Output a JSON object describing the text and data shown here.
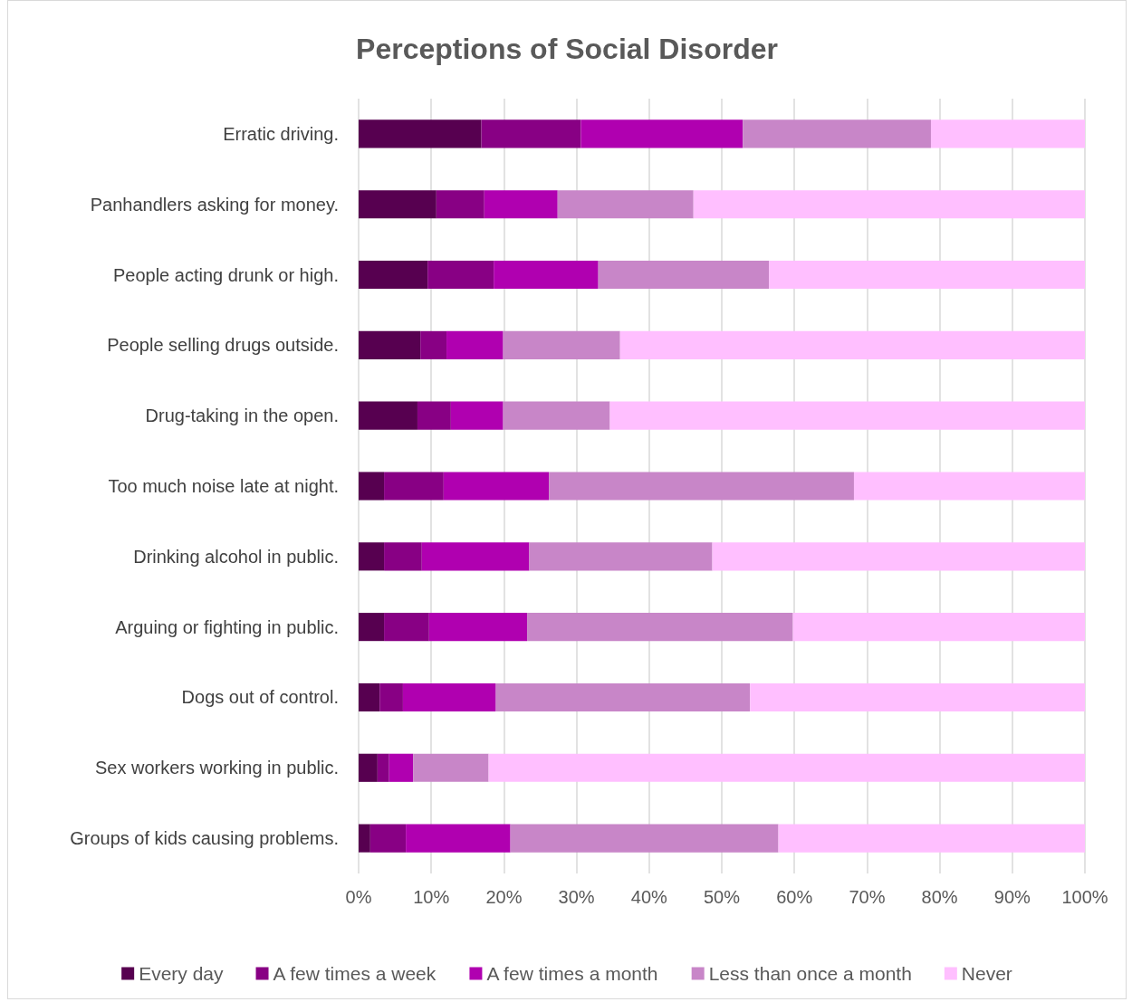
{
  "chart_data": {
    "type": "bar",
    "orientation": "horizontal",
    "stacked": true,
    "title": "Perceptions of Social Disorder",
    "categories": [
      "Erratic driving.",
      "Panhandlers asking for money.",
      "People acting drunk or high.",
      "People selling drugs outside.",
      "Drug-taking in the open.",
      "Too much noise late at night.",
      "Drinking alcohol in public.",
      "Arguing or fighting in public.",
      "Dogs out of control.",
      "Sex workers working in public.",
      "Groups of kids causing problems."
    ],
    "series": [
      {
        "name": "Every day",
        "color": "#570050",
        "values": [
          16.9,
          10.7,
          9.5,
          8.5,
          8.1,
          3.5,
          3.5,
          3.5,
          2.9,
          2.6,
          1.6
        ]
      },
      {
        "name": "A few times a week",
        "color": "#880084",
        "values": [
          13.7,
          6.6,
          9.1,
          3.6,
          4.6,
          8.2,
          5.2,
          6.2,
          3.2,
          1.6,
          4.9
        ]
      },
      {
        "name": "A few times a month",
        "color": "#b000b0",
        "values": [
          22.3,
          10.1,
          14.4,
          7.8,
          7.2,
          14.5,
          14.8,
          13.5,
          12.8,
          3.3,
          14.4
        ]
      },
      {
        "name": "Less than once a month",
        "color": "#c886c8",
        "values": [
          25.9,
          18.7,
          23.5,
          16.1,
          14.7,
          42.0,
          25.2,
          36.6,
          35.0,
          10.4,
          36.9
        ]
      },
      {
        "name": "Never",
        "color": "#ffbfff",
        "values": [
          21.2,
          53.9,
          43.5,
          64.0,
          65.4,
          31.8,
          51.3,
          40.2,
          46.1,
          82.1,
          42.2
        ]
      }
    ],
    "xlim": [
      0,
      100
    ],
    "xticks": [
      {
        "value": 0,
        "label": "0%"
      },
      {
        "value": 10,
        "label": "10%"
      },
      {
        "value": 20,
        "label": "20%"
      },
      {
        "value": 30,
        "label": "30%"
      },
      {
        "value": 40,
        "label": "40%"
      },
      {
        "value": 50,
        "label": "50%"
      },
      {
        "value": 60,
        "label": "60%"
      },
      {
        "value": 70,
        "label": "70%"
      },
      {
        "value": 80,
        "label": "80%"
      },
      {
        "value": 90,
        "label": "90%"
      },
      {
        "value": 100,
        "label": "100%"
      }
    ],
    "grid": "x",
    "legend": "bottom"
  }
}
